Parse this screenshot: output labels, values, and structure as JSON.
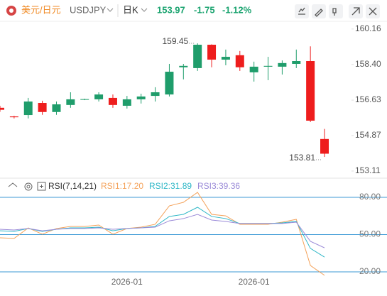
{
  "header": {
    "pair": "美元/日元",
    "symbol": "USDJPY",
    "period": "日K",
    "price": "153.97",
    "change": "-1.75",
    "change_pct": "-1.12%"
  },
  "chart_data": [
    {
      "type": "candlestick",
      "categories": [
        null,
        null,
        null,
        null,
        null,
        null,
        null,
        null,
        null,
        "2026-01",
        null,
        null,
        null,
        null,
        null,
        null,
        null,
        null,
        "2026-01",
        null,
        null,
        null,
        null,
        null
      ],
      "open": [
        156.25,
        155.82,
        155.89,
        156.49,
        156.04,
        156.39,
        156.66,
        156.67,
        156.74,
        156.35,
        156.67,
        156.84,
        156.91,
        158.26,
        158.22,
        159.38,
        158.64,
        158.86,
        158.01,
        158.29,
        158.29,
        158.43,
        158.57,
        154.7
      ],
      "high": [
        156.35,
        155.85,
        156.74,
        156.6,
        156.56,
        157.02,
        156.7,
        157.02,
        156.91,
        156.84,
        156.95,
        157.27,
        158.43,
        158.43,
        159.45,
        159.4,
        159.14,
        159.07,
        158.54,
        158.78,
        158.6,
        159.14,
        159.3,
        155.2
      ],
      "low": [
        156.05,
        155.72,
        155.72,
        155.9,
        155.9,
        156.25,
        156.63,
        156.56,
        156.25,
        156.21,
        156.46,
        156.56,
        156.81,
        157.66,
        158.08,
        158.26,
        158.36,
        158.08,
        157.55,
        157.62,
        157.9,
        158.22,
        155.54,
        153.81
      ],
      "close": [
        156.15,
        155.78,
        156.56,
        156.04,
        156.42,
        156.67,
        156.68,
        156.91,
        156.39,
        156.67,
        156.81,
        157.02,
        158.04,
        158.33,
        159.38,
        158.64,
        158.78,
        158.26,
        158.29,
        158.33,
        158.47,
        158.57,
        155.61,
        153.97
      ],
      "up_color": "#1f9d6b",
      "down_color": "#ee1d1d",
      "ylim": [
        152.79,
        160.72
      ],
      "yticks": [
        {
          "value": 160.16,
          "label": "160.16"
        },
        {
          "value": 158.4,
          "label": "158.40"
        },
        {
          "value": 156.63,
          "label": "156.63"
        },
        {
          "value": 154.87,
          "label": "154.87"
        },
        {
          "value": 153.11,
          "label": "153.11"
        }
      ],
      "annotations": [
        {
          "label": "159.45",
          "at": "high"
        },
        {
          "label": "153.81",
          "at": "low"
        }
      ]
    },
    {
      "type": "line",
      "title": "RSI(7,14,21)",
      "series": [
        {
          "name": "RSI1:17.20",
          "color": "#f4a25a",
          "values": [
            47.4,
            46.9,
            55.4,
            50.3,
            54.9,
            56.6,
            56.6,
            57.7,
            50.3,
            54.9,
            56,
            58.3,
            73.1,
            76,
            84,
            66.3,
            65.1,
            58.3,
            58.3,
            58.3,
            60,
            62.3,
            25.1,
            17.2
          ]
        },
        {
          "name": "RSI2:31.89",
          "color": "#2fb7c7",
          "values": [
            53.1,
            52.6,
            54.9,
            52.6,
            54.3,
            55.4,
            55.4,
            56,
            53.1,
            54.9,
            55.4,
            56.6,
            64.6,
            66.3,
            72,
            64.6,
            62.9,
            58.9,
            58.9,
            58.9,
            59.4,
            60.6,
            38.9,
            31.89
          ]
        },
        {
          "name": "RSI3:39.36",
          "color": "#9b8bd8",
          "values": [
            54.3,
            53.7,
            54.9,
            53.1,
            54.3,
            54.9,
            54.9,
            55.4,
            54.3,
            54.9,
            55.4,
            56,
            61.1,
            62.9,
            66.3,
            61.7,
            60.6,
            58.9,
            58.9,
            58.9,
            58.9,
            60,
            44.6,
            39.36
          ]
        }
      ],
      "ylim": [
        16,
        86
      ],
      "yticks": [
        {
          "value": 80,
          "label": "80.00"
        },
        {
          "value": 50,
          "label": "50.00"
        },
        {
          "value": 20,
          "label": "20.00"
        }
      ],
      "level_color": "#3d9ad6"
    }
  ]
}
